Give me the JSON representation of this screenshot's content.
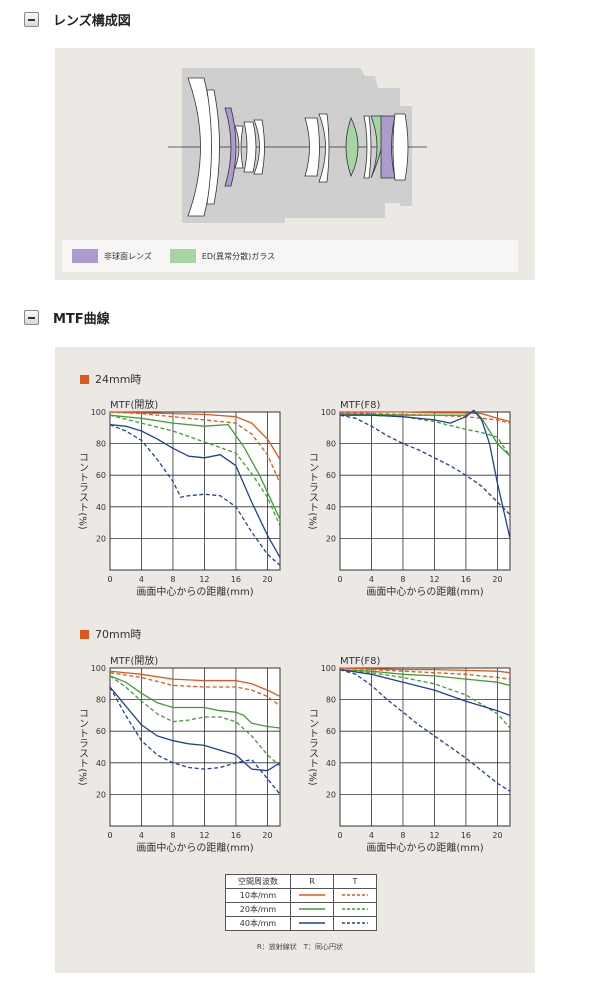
{
  "sections": {
    "lens": {
      "title": "レンズ構成図"
    },
    "mtf": {
      "title": "MTF曲線"
    }
  },
  "lens_legend": {
    "aspherical": {
      "label": "非球面レンズ",
      "color": "#ad9acf"
    },
    "ed": {
      "label": "ED(異常分散)ガラス",
      "color": "#a7d4a5"
    }
  },
  "chart_colors": {
    "10": "#e0561d",
    "20": "#3f9f33",
    "40": "#21409a"
  },
  "charts": {
    "c24": {
      "label": "24mm時"
    },
    "c70": {
      "label": "70mm時"
    },
    "open_title": "MTF(開放)",
    "f8_title": "MTF(F8)",
    "ylabel": "コントラスト(%)",
    "xlabel": "画面中心からの距離(mm)"
  },
  "key": {
    "header": {
      "freq": "空間周波数",
      "r": "R",
      "t": "T"
    },
    "rows": [
      "10本/mm",
      "20本/mm",
      "40本/mm"
    ],
    "footnote": "R：放射線状　T：同心円状"
  },
  "chart_data": [
    {
      "type": "line",
      "title": "MTF(開放)",
      "group": "24mm時",
      "xlabel": "画面中心からの距離(mm)",
      "ylabel": "コントラスト(%)",
      "xlim": [
        0,
        21.6
      ],
      "ylim": [
        0,
        100
      ],
      "xticks": [
        0,
        4,
        8,
        12,
        16,
        20
      ],
      "yticks": [
        20,
        40,
        60,
        80,
        100
      ],
      "series": [
        {
          "freq": 10,
          "kind": "R",
          "x": [
            0,
            4,
            8,
            12,
            16,
            18,
            20,
            21.6
          ],
          "y": [
            100,
            99.5,
            99,
            98.5,
            97,
            93,
            83,
            70
          ]
        },
        {
          "freq": 10,
          "kind": "T",
          "x": [
            0,
            4,
            8,
            12,
            16,
            18,
            20,
            21.6
          ],
          "y": [
            100,
            99,
            97,
            95,
            93,
            86,
            73,
            55
          ]
        },
        {
          "freq": 20,
          "kind": "R",
          "x": [
            0,
            4,
            8,
            12,
            15,
            17,
            19,
            21.6
          ],
          "y": [
            98,
            96,
            93,
            91,
            92,
            78,
            60,
            32
          ]
        },
        {
          "freq": 20,
          "kind": "T",
          "x": [
            0,
            4,
            8,
            12,
            16,
            18,
            20,
            21.6
          ],
          "y": [
            98,
            93,
            88,
            81,
            74,
            61,
            46,
            28
          ]
        },
        {
          "freq": 40,
          "kind": "R",
          "x": [
            0,
            2,
            4,
            6,
            8,
            10,
            12,
            14,
            16,
            18,
            20,
            21.6
          ],
          "y": [
            92,
            91,
            88,
            83,
            77,
            72,
            71,
            73,
            66,
            43,
            22,
            8
          ]
        },
        {
          "freq": 40,
          "kind": "T",
          "x": [
            0,
            2,
            4,
            6,
            8,
            9,
            10,
            12,
            14,
            16,
            18,
            20,
            21.6
          ],
          "y": [
            92,
            88,
            82,
            70,
            56,
            46,
            47,
            48,
            47,
            40,
            24,
            10,
            3
          ]
        }
      ]
    },
    {
      "type": "line",
      "title": "MTF(F8)",
      "group": "24mm時",
      "xlabel": "画面中心からの距離(mm)",
      "ylabel": "コントラスト(%)",
      "xlim": [
        0,
        21.6
      ],
      "ylim": [
        0,
        100
      ],
      "xticks": [
        0,
        4,
        8,
        12,
        16,
        20
      ],
      "yticks": [
        20,
        40,
        60,
        80,
        100
      ],
      "series": [
        {
          "freq": 10,
          "kind": "R",
          "x": [
            0,
            4,
            8,
            12,
            16,
            18,
            20,
            21.6
          ],
          "y": [
            100,
            100,
            100,
            99.5,
            99.5,
            99,
            96,
            94
          ]
        },
        {
          "freq": 10,
          "kind": "T",
          "x": [
            0,
            4,
            8,
            12,
            16,
            18,
            20,
            21.6
          ],
          "y": [
            100,
            99,
            98.5,
            98,
            97,
            96,
            95,
            93
          ]
        },
        {
          "freq": 20,
          "kind": "R",
          "x": [
            0,
            4,
            8,
            12,
            16,
            17,
            18,
            20,
            21.6
          ],
          "y": [
            99,
            98.5,
            98,
            98,
            98,
            101,
            96,
            80,
            72
          ]
        },
        {
          "freq": 20,
          "kind": "T",
          "x": [
            0,
            4,
            8,
            12,
            16,
            18,
            20,
            21.6
          ],
          "y": [
            99,
            98,
            97,
            94,
            89,
            87,
            84,
            72
          ]
        },
        {
          "freq": 40,
          "kind": "R",
          "x": [
            0,
            4,
            8,
            12,
            14,
            16,
            17,
            18,
            19,
            20,
            21.6
          ],
          "y": [
            98,
            98,
            97,
            95,
            93,
            97,
            101,
            95,
            80,
            55,
            20
          ]
        },
        {
          "freq": 40,
          "kind": "T",
          "x": [
            0,
            2,
            4,
            6,
            8,
            10,
            12,
            14,
            16,
            18,
            20,
            21.6
          ],
          "y": [
            98,
            96,
            91,
            85,
            80,
            76,
            71,
            66,
            60,
            53,
            43,
            35
          ]
        }
      ]
    },
    {
      "type": "line",
      "title": "MTF(開放)",
      "group": "70mm時",
      "xlabel": "画面中心からの距離(mm)",
      "ylabel": "コントラスト(%)",
      "xlim": [
        0,
        21.6
      ],
      "ylim": [
        0,
        100
      ],
      "xticks": [
        0,
        4,
        8,
        12,
        16,
        20
      ],
      "yticks": [
        20,
        40,
        60,
        80,
        100
      ],
      "series": [
        {
          "freq": 10,
          "kind": "R",
          "x": [
            0,
            4,
            8,
            12,
            16,
            18,
            20,
            21.6
          ],
          "y": [
            98,
            96,
            93,
            92,
            92,
            90,
            86,
            82
          ]
        },
        {
          "freq": 10,
          "kind": "T",
          "x": [
            0,
            4,
            8,
            12,
            16,
            18,
            20,
            21.6
          ],
          "y": [
            97,
            94,
            89,
            88,
            88,
            86,
            82,
            76
          ]
        },
        {
          "freq": 20,
          "kind": "R",
          "x": [
            0,
            2,
            4,
            6,
            8,
            10,
            12,
            14,
            16,
            17,
            18,
            20,
            21.6
          ],
          "y": [
            95,
            91,
            84,
            78,
            75,
            75,
            75,
            73,
            72,
            70,
            65,
            63,
            62
          ]
        },
        {
          "freq": 20,
          "kind": "T",
          "x": [
            0,
            2,
            4,
            6,
            8,
            10,
            12,
            14,
            16,
            18,
            20,
            21.6
          ],
          "y": [
            95,
            88,
            79,
            71,
            66,
            67,
            69,
            69,
            66,
            57,
            45,
            38
          ]
        },
        {
          "freq": 40,
          "kind": "R",
          "x": [
            0,
            2,
            4,
            6,
            8,
            10,
            12,
            14,
            16,
            18,
            20,
            21.6
          ],
          "y": [
            88,
            76,
            64,
            57,
            54,
            52,
            51,
            48,
            45,
            36,
            35,
            40
          ]
        },
        {
          "freq": 40,
          "kind": "T",
          "x": [
            0,
            2,
            4,
            6,
            8,
            10,
            12,
            14,
            16,
            18,
            20,
            21.6
          ],
          "y": [
            88,
            70,
            54,
            45,
            40,
            37,
            36,
            37,
            40,
            42,
            30,
            20
          ]
        }
      ]
    },
    {
      "type": "line",
      "title": "MTF(F8)",
      "group": "70mm時",
      "xlabel": "画面中心からの距離(mm)",
      "ylabel": "コントラスト(%)",
      "xlim": [
        0,
        21.6
      ],
      "ylim": [
        0,
        100
      ],
      "xticks": [
        0,
        4,
        8,
        12,
        16,
        20
      ],
      "yticks": [
        20,
        40,
        60,
        80,
        100
      ],
      "series": [
        {
          "freq": 10,
          "kind": "R",
          "x": [
            0,
            4,
            8,
            12,
            16,
            20,
            21.6
          ],
          "y": [
            100,
            99.5,
            99,
            99,
            98.5,
            98,
            97
          ]
        },
        {
          "freq": 10,
          "kind": "T",
          "x": [
            0,
            4,
            8,
            12,
            16,
            20,
            21.6
          ],
          "y": [
            100,
            99,
            98,
            97,
            96,
            94,
            93
          ]
        },
        {
          "freq": 20,
          "kind": "R",
          "x": [
            0,
            4,
            8,
            12,
            16,
            20,
            21.6
          ],
          "y": [
            99,
            98,
            96,
            95,
            93,
            91,
            89
          ]
        },
        {
          "freq": 20,
          "kind": "T",
          "x": [
            0,
            4,
            8,
            12,
            16,
            20,
            21.6
          ],
          "y": [
            99,
            97,
            94,
            90,
            83,
            71,
            62
          ]
        },
        {
          "freq": 40,
          "kind": "R",
          "x": [
            0,
            4,
            8,
            12,
            16,
            20,
            21.6
          ],
          "y": [
            99,
            96,
            91,
            86,
            79,
            73,
            70
          ]
        },
        {
          "freq": 40,
          "kind": "T",
          "x": [
            0,
            2,
            4,
            6,
            8,
            10,
            12,
            14,
            16,
            18,
            20,
            21.6
          ],
          "y": [
            99,
            96,
            89,
            80,
            72,
            64,
            57,
            50,
            43,
            35,
            27,
            22
          ]
        }
      ]
    }
  ]
}
